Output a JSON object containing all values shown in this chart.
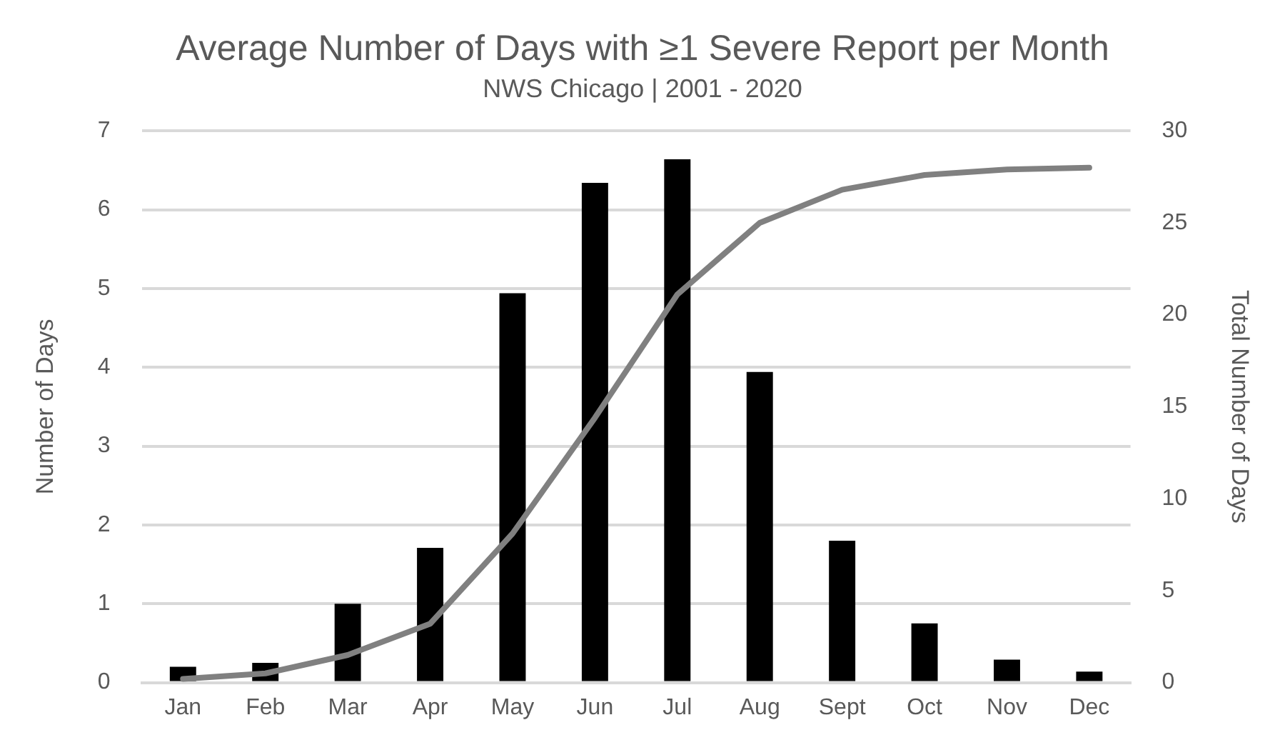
{
  "chart_data": {
    "type": "bar",
    "title": "Average Number of Days with ≥1 Severe Report per Month",
    "subtitle": "NWS Chicago | 2001 - 2020",
    "ylabel": "Number of Days",
    "y2label": "Total Number of Days",
    "categories": [
      "Jan",
      "Feb",
      "Mar",
      "Apr",
      "May",
      "Jun",
      "Jul",
      "Aug",
      "Sept",
      "Oct",
      "Nov",
      "Dec"
    ],
    "series": [
      {
        "color": "#000000",
        "values": [
          0.2,
          0.25,
          1.0,
          1.71,
          4.94,
          6.34,
          6.64,
          3.94,
          1.8,
          0.75,
          0.29,
          0.14
        ]
      },
      {
        "type": "line",
        "axis": "y2",
        "color": "#808080",
        "values": [
          0.2,
          0.5,
          1.5,
          3.2,
          8.1,
          14.4,
          21.1,
          25.0,
          26.8,
          27.6,
          27.9,
          28.0
        ]
      }
    ],
    "ylim": [
      0,
      7
    ],
    "yticks": [
      0,
      1,
      2,
      3,
      4,
      5,
      6,
      7
    ],
    "y2lim": [
      0,
      30
    ],
    "y2ticks": [
      0,
      5,
      10,
      15,
      20,
      25,
      30
    ],
    "grid": "y",
    "legend": false,
    "marker": "none"
  }
}
